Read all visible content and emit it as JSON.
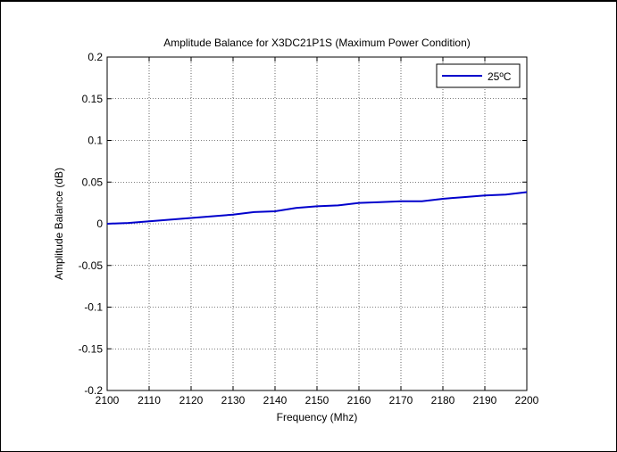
{
  "chart_data": {
    "type": "line",
    "title": "Amplitude Balance for X3DC21P1S (Maximum Power Condition)",
    "xlabel": "Frequency (Mhz)",
    "ylabel": "Amplitude Balance (dB)",
    "xlim": [
      2100,
      2200
    ],
    "ylim": [
      -0.2,
      0.2
    ],
    "xticks": [
      2100,
      2110,
      2120,
      2130,
      2140,
      2150,
      2160,
      2170,
      2180,
      2190,
      2200
    ],
    "yticks": [
      -0.2,
      -0.15,
      -0.1,
      -0.05,
      0,
      0.05,
      0.1,
      0.15,
      0.2
    ],
    "xtick_labels": [
      "2100",
      "2110",
      "2120",
      "2130",
      "2140",
      "2150",
      "2160",
      "2170",
      "2180",
      "2190",
      "2200"
    ],
    "ytick_labels": [
      "-0.2",
      "-0.15",
      "-0.1",
      "-0.05",
      "0",
      "0.05",
      "0.1",
      "0.15",
      "0.2"
    ],
    "grid": true,
    "legend_position": "top-right",
    "series": [
      {
        "name": "25ºC",
        "color": "#0000cc",
        "x": [
          2100,
          2105,
          2110,
          2115,
          2120,
          2125,
          2130,
          2135,
          2140,
          2145,
          2150,
          2155,
          2160,
          2165,
          2170,
          2175,
          2180,
          2185,
          2190,
          2195,
          2200
        ],
        "y": [
          0.0,
          0.001,
          0.003,
          0.005,
          0.007,
          0.009,
          0.011,
          0.014,
          0.015,
          0.019,
          0.021,
          0.022,
          0.025,
          0.026,
          0.027,
          0.027,
          0.03,
          0.032,
          0.034,
          0.035,
          0.038
        ]
      }
    ]
  }
}
